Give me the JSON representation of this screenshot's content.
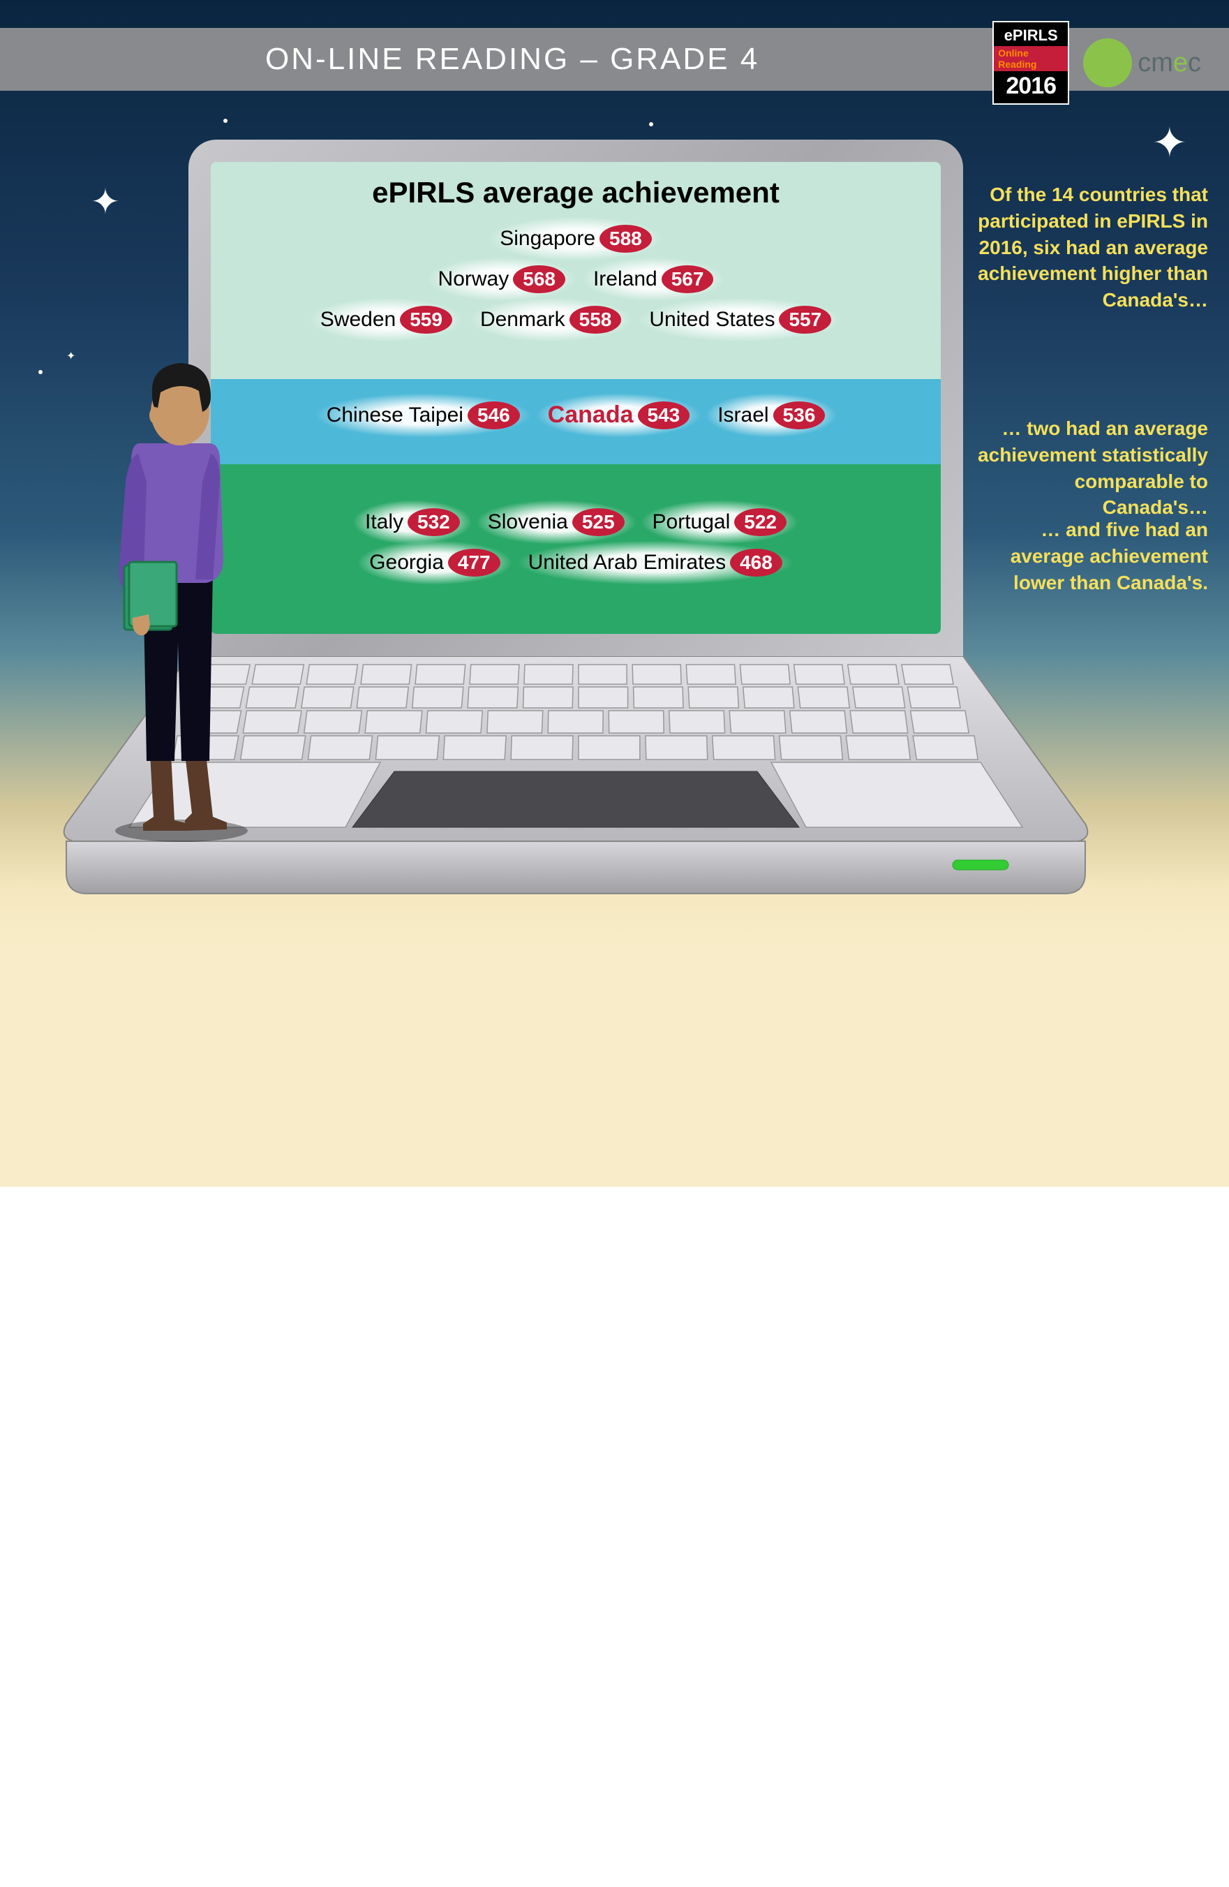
{
  "header": {
    "title": "ON-LINE READING – GRADE 4"
  },
  "logos": {
    "epirls_top": "ePIRLS",
    "epirls_mid": "Online Reading",
    "epirls_year": "2016",
    "cmec": "cmec"
  },
  "chart": {
    "title": "ePIRLS average achievement",
    "type": "infographic",
    "pill_color": "#c41e3a",
    "pill_text_color": "#ffffff",
    "section_colors": {
      "high": "#c5e6d9",
      "mid": "#4db8d8",
      "low": "#2aa868"
    },
    "highlight_country": "Canada",
    "highlight_color": "#c41e3a",
    "label_fontsize": 30,
    "value_fontsize": 28,
    "title_fontsize": 42,
    "high": {
      "rows": [
        [
          {
            "country": "Singapore",
            "value": 588
          }
        ],
        [
          {
            "country": "Norway",
            "value": 568
          },
          {
            "country": "Ireland",
            "value": 567
          }
        ],
        [
          {
            "country": "Sweden",
            "value": 559
          },
          {
            "country": "Denmark",
            "value": 558
          },
          {
            "country": "United States",
            "value": 557
          }
        ]
      ]
    },
    "mid": {
      "rows": [
        [
          {
            "country": "Chinese Taipei",
            "value": 546
          },
          {
            "country": "Canada",
            "value": 543,
            "highlight": true
          },
          {
            "country": "Israel",
            "value": 536
          }
        ]
      ]
    },
    "low": {
      "rows": [
        [
          {
            "country": "Italy",
            "value": 532
          },
          {
            "country": "Slovenia",
            "value": 525
          },
          {
            "country": "Portugal",
            "value": 522
          }
        ],
        [
          {
            "country": "Georgia",
            "value": 477
          },
          {
            "country": "United Arab Emirates",
            "value": 468
          }
        ]
      ]
    }
  },
  "sidebar": {
    "p1": "Of the 14 countries that participated in ePIRLS in 2016, six had an average achievement higher than Canada's…",
    "p2": "… two had an average achievement statistically comparable to Canada's…",
    "p3": "… and five had an average achievement lower than Canada's."
  },
  "colors": {
    "header_bar": "#888a8d",
    "sky_top": "#0a2540",
    "sidebar_text": "#f5e05a",
    "laptop_metal": "#c8c8cc"
  }
}
